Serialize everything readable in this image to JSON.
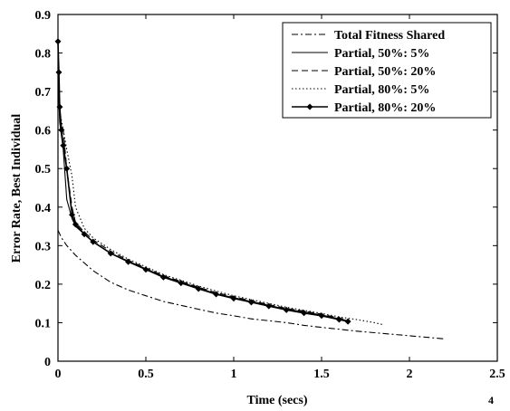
{
  "chart_data": {
    "type": "line",
    "title": "",
    "xlabel": "Time (secs)",
    "ylabel": "Error Rate, Best Individual",
    "x_scale_exponent_label": "4",
    "xlim": [
      0,
      2.5
    ],
    "ylim": [
      0,
      0.9
    ],
    "x_ticks": [
      0,
      0.5,
      1,
      1.5,
      2,
      2.5
    ],
    "x_tick_labels": [
      "0",
      "0.5",
      "1",
      "1.5",
      "2",
      "2.5"
    ],
    "y_ticks": [
      0,
      0.1,
      0.2,
      0.3,
      0.4,
      0.5,
      0.6,
      0.7,
      0.8,
      0.9
    ],
    "y_tick_labels": [
      "0",
      "0.1",
      "0.2",
      "0.3",
      "0.4",
      "0.5",
      "0.6",
      "0.7",
      "0.8",
      "0.9"
    ],
    "grid": false,
    "legend_position": "top-right",
    "series": [
      {
        "name": "Total Fitness Shared",
        "style": "dash-dot",
        "color": "#000000",
        "x": [
          0,
          0.02,
          0.05,
          0.1,
          0.15,
          0.2,
          0.3,
          0.4,
          0.5,
          0.6,
          0.7,
          0.8,
          0.9,
          1.0,
          1.1,
          1.2,
          1.3,
          1.4,
          1.5,
          1.6,
          1.7,
          1.8,
          1.9,
          2.0,
          2.1,
          2.2
        ],
        "y": [
          0.34,
          0.32,
          0.3,
          0.275,
          0.255,
          0.235,
          0.205,
          0.185,
          0.17,
          0.155,
          0.145,
          0.135,
          0.125,
          0.118,
          0.11,
          0.105,
          0.1,
          0.093,
          0.088,
          0.083,
          0.078,
          0.074,
          0.07,
          0.066,
          0.062,
          0.058
        ]
      },
      {
        "name": "Partial, 50%: 5%",
        "style": "solid",
        "color": "#000000",
        "x": [
          0,
          0.01,
          0.03,
          0.05,
          0.08,
          0.1,
          0.15,
          0.2,
          0.3,
          0.4,
          0.5,
          0.6,
          0.7,
          0.8,
          0.9,
          1.0,
          1.1,
          1.2,
          1.3,
          1.4,
          1.5,
          1.6,
          1.65
        ],
        "y": [
          0.75,
          0.62,
          0.55,
          0.42,
          0.37,
          0.35,
          0.33,
          0.31,
          0.28,
          0.26,
          0.24,
          0.22,
          0.205,
          0.19,
          0.175,
          0.165,
          0.155,
          0.145,
          0.135,
          0.128,
          0.12,
          0.11,
          0.105
        ]
      },
      {
        "name": "Partial, 50%: 20%",
        "style": "dashed",
        "color": "#000000",
        "x": [
          0,
          0.01,
          0.03,
          0.05,
          0.08,
          0.1,
          0.15,
          0.2,
          0.3,
          0.4,
          0.5,
          0.6,
          0.7,
          0.8,
          0.9,
          1.0,
          1.1,
          1.2,
          1.3,
          1.4,
          1.5,
          1.6,
          1.65
        ],
        "y": [
          0.76,
          0.63,
          0.6,
          0.5,
          0.4,
          0.36,
          0.335,
          0.315,
          0.285,
          0.262,
          0.242,
          0.222,
          0.207,
          0.192,
          0.178,
          0.167,
          0.157,
          0.147,
          0.137,
          0.13,
          0.122,
          0.112,
          0.107
        ]
      },
      {
        "name": "Partial, 80%: 5%",
        "style": "dotted",
        "color": "#000000",
        "x": [
          0,
          0.01,
          0.03,
          0.05,
          0.08,
          0.1,
          0.15,
          0.2,
          0.3,
          0.4,
          0.5,
          0.6,
          0.7,
          0.8,
          0.9,
          1.0,
          1.1,
          1.2,
          1.3,
          1.4,
          1.5,
          1.6,
          1.7,
          1.8,
          1.85
        ],
        "y": [
          0.74,
          0.65,
          0.6,
          0.55,
          0.48,
          0.4,
          0.345,
          0.32,
          0.29,
          0.265,
          0.245,
          0.225,
          0.21,
          0.195,
          0.182,
          0.17,
          0.16,
          0.15,
          0.14,
          0.132,
          0.124,
          0.115,
          0.108,
          0.1,
          0.095
        ]
      },
      {
        "name": "Partial, 80%: 20%",
        "style": "solid-diamond",
        "color": "#000000",
        "x": [
          0,
          0.005,
          0.01,
          0.02,
          0.03,
          0.05,
          0.08,
          0.1,
          0.15,
          0.2,
          0.3,
          0.4,
          0.5,
          0.6,
          0.7,
          0.8,
          0.9,
          1.0,
          1.1,
          1.2,
          1.3,
          1.4,
          1.5,
          1.6,
          1.65
        ],
        "y": [
          0.83,
          0.75,
          0.66,
          0.6,
          0.56,
          0.5,
          0.38,
          0.355,
          0.33,
          0.31,
          0.28,
          0.258,
          0.238,
          0.218,
          0.203,
          0.188,
          0.174,
          0.163,
          0.153,
          0.143,
          0.133,
          0.125,
          0.118,
          0.108,
          0.103
        ]
      }
    ]
  }
}
